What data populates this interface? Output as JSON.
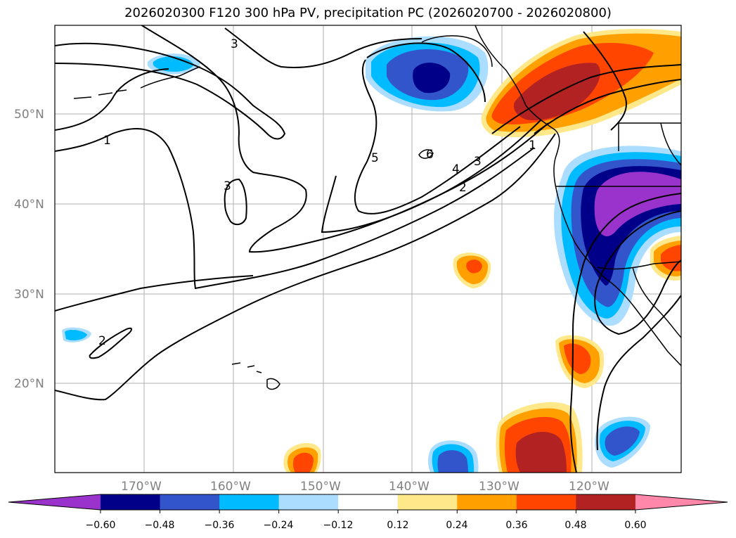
{
  "title": "2026020300 F120 300 hPa PV, precipitation PC (2026020700 - 2026020800)",
  "latitudes": [
    "50°N",
    "40°N",
    "30°N",
    "20°N"
  ],
  "longitudes": [
    "170°W",
    "160°W",
    "150°W",
    "140°W",
    "130°W",
    "120°W"
  ],
  "contour_labels": [
    "1",
    "1",
    "2",
    "2",
    "3",
    "3",
    "3",
    "4",
    "5",
    "6"
  ],
  "colorbar": {
    "ticks": [
      "−0.60",
      "−0.48",
      "−0.36",
      "−0.24",
      "−0.12",
      "0.12",
      "0.24",
      "0.36",
      "0.48",
      "0.60"
    ],
    "colors": [
      "#9933cc",
      "#000088",
      "#3355cc",
      "#00bbff",
      "#aaddff",
      "#ffffff",
      "#ffe88a",
      "#ffa000",
      "#ff4500",
      "#b22222",
      "#ff88aa"
    ]
  },
  "colors": {
    "ocean": "#ffffff",
    "grid": "#b0b0b0",
    "coast": "#000000",
    "contour": "#000000"
  }
}
